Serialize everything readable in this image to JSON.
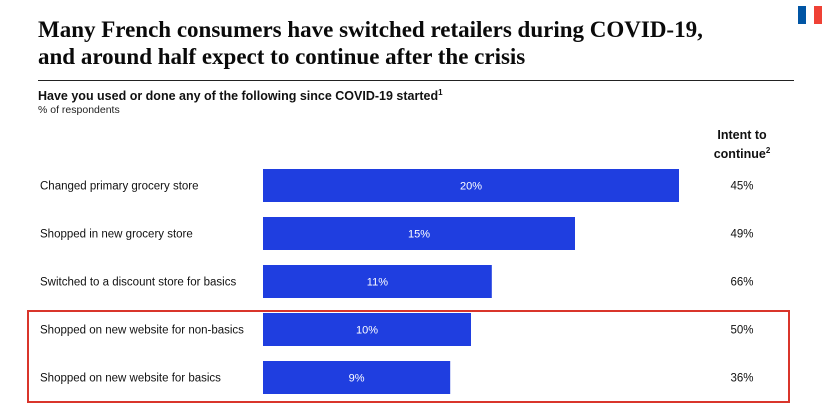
{
  "header": {
    "title_line1": "Many French consumers have switched retailers during COVID-19,",
    "title_line2": "and around half expect to continue after the crisis",
    "flag_colors": [
      "#0055a4",
      "#ffffff",
      "#ef4135"
    ]
  },
  "chart_data": {
    "type": "bar",
    "orientation": "horizontal",
    "subtitle": "Have you used or done any of the following since COVID-19 started",
    "subtitle_footnote": "1",
    "unit_label": "% of respondents",
    "categories": [
      "Changed primary grocery store",
      "Shopped in new grocery store",
      "Switched to a discount store for basics",
      "Shopped on new website for non-basics",
      "Shopped on new website for basics"
    ],
    "values": [
      20,
      15,
      11,
      10,
      9
    ],
    "value_labels": [
      "20%",
      "15%",
      "11%",
      "10%",
      "9%"
    ],
    "bar_color": "#1f3ee0",
    "intent_header_line1": "Intent to",
    "intent_header_line2": "continue",
    "intent_header_footnote": "2",
    "intent_to_continue": [
      45,
      49,
      66,
      50,
      36
    ],
    "intent_labels": [
      "45%",
      "49%",
      "66%",
      "50%",
      "36%"
    ],
    "highlighted_categories": [
      "Shopped on new website for non-basics",
      "Shopped on new website for basics"
    ],
    "highlight_color": "#d9352b"
  }
}
